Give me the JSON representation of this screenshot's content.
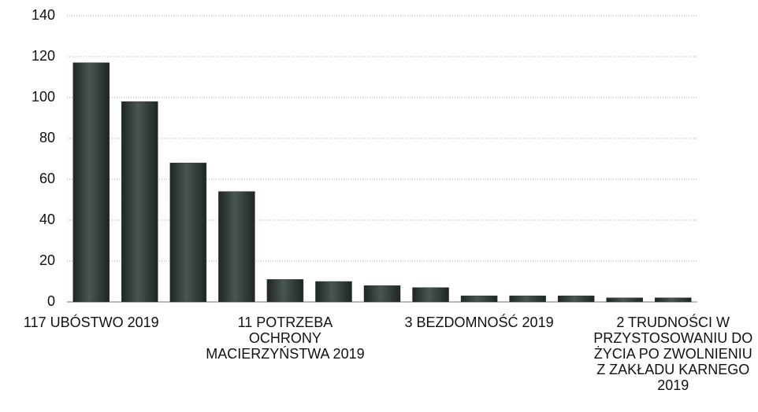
{
  "chart_data": {
    "type": "bar",
    "categories": [
      "117 UBÓSTWO 2019",
      null,
      null,
      null,
      "11 POTRZEBA OCHRONY MACIERZYŃSTWA 2019",
      null,
      null,
      null,
      "3 BEZDOMNOŚĆ 2019",
      null,
      null,
      null,
      "2 TRUDNOŚCI W PRZYSTOSOWANIU DO ŻYCIA PO ZWOLNIENIU Z ZAKŁADU KARNEGO 2019"
    ],
    "values": [
      117,
      98,
      68,
      54,
      11,
      10,
      8,
      7,
      3,
      3,
      3,
      2,
      2
    ],
    "color": "#2f3a34",
    "ylim": [
      0,
      140
    ],
    "yticks": [
      0,
      20,
      40,
      60,
      80,
      100,
      120,
      140
    ],
    "grid": true
  }
}
